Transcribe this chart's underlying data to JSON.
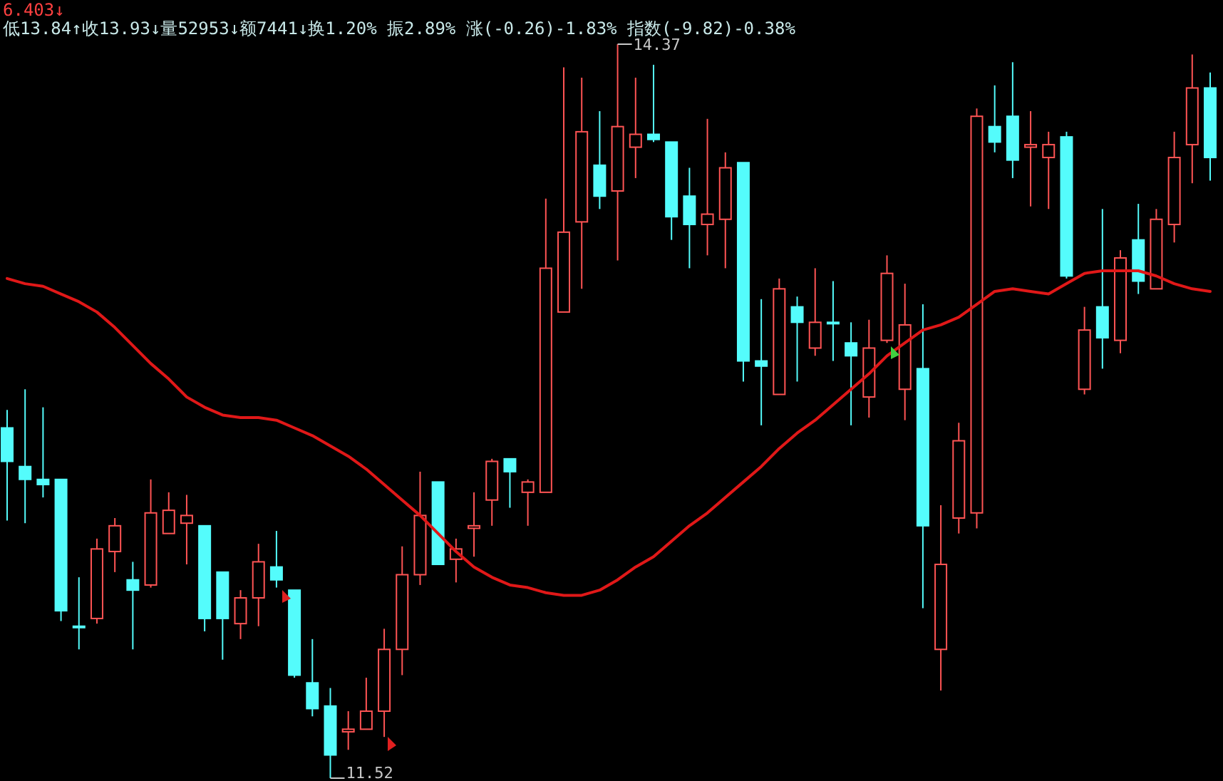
{
  "chart_data": {
    "type": "candlestick",
    "categories": [
      null,
      null,
      null,
      null,
      null,
      null,
      null,
      null,
      null,
      null,
      null,
      null,
      null,
      null,
      null,
      null,
      null,
      null,
      null,
      null,
      null,
      null,
      null,
      null,
      null,
      null,
      null,
      null,
      null,
      null,
      null,
      null,
      null,
      null,
      null,
      null,
      null,
      null,
      null,
      null,
      null,
      null,
      null,
      null,
      null,
      null,
      null,
      null,
      null,
      null,
      null,
      null,
      null,
      null,
      null,
      null,
      null,
      null,
      null,
      null,
      null,
      null,
      null,
      null,
      null,
      null,
      null,
      null
    ],
    "ohlc": [
      [
        12.88,
        12.95,
        12.52,
        12.75
      ],
      [
        12.73,
        13.03,
        12.51,
        12.68
      ],
      [
        12.68,
        12.96,
        12.61,
        12.66
      ],
      [
        12.68,
        12.68,
        12.13,
        12.17
      ],
      [
        12.11,
        12.3,
        12.02,
        12.11
      ],
      [
        12.14,
        12.45,
        12.12,
        12.41
      ],
      [
        12.4,
        12.53,
        12.32,
        12.5
      ],
      [
        12.29,
        12.36,
        12.02,
        12.25
      ],
      [
        12.27,
        12.68,
        12.26,
        12.55
      ],
      [
        12.47,
        12.63,
        12.47,
        12.56
      ],
      [
        12.51,
        12.62,
        12.35,
        12.54
      ],
      [
        12.5,
        12.5,
        12.09,
        12.14
      ],
      [
        12.32,
        12.32,
        11.98,
        12.14
      ],
      [
        12.12,
        12.25,
        12.06,
        12.22
      ],
      [
        12.22,
        12.43,
        12.11,
        12.36
      ],
      [
        12.34,
        12.48,
        12.26,
        12.29
      ],
      [
        12.25,
        12.25,
        11.91,
        11.92
      ],
      [
        11.89,
        12.06,
        11.76,
        11.79
      ],
      [
        11.8,
        11.87,
        11.52,
        11.61
      ],
      [
        11.7,
        11.78,
        11.63,
        11.71
      ],
      [
        11.71,
        11.91,
        11.71,
        11.78
      ],
      [
        11.78,
        12.1,
        11.68,
        12.02
      ],
      [
        12.02,
        12.42,
        11.92,
        12.31
      ],
      [
        12.31,
        12.71,
        12.27,
        12.54
      ],
      [
        12.67,
        12.67,
        12.35,
        12.35
      ],
      [
        12.37,
        12.45,
        12.28,
        12.41
      ],
      [
        12.49,
        12.63,
        12.38,
        12.5
      ],
      [
        12.6,
        12.76,
        12.5,
        12.75
      ],
      [
        12.76,
        12.76,
        12.57,
        12.71
      ],
      [
        12.63,
        12.68,
        12.5,
        12.67
      ],
      [
        12.63,
        13.77,
        12.63,
        13.5
      ],
      [
        13.33,
        14.28,
        13.33,
        13.64
      ],
      [
        13.68,
        14.24,
        13.42,
        14.03
      ],
      [
        13.9,
        14.11,
        13.73,
        13.78
      ],
      [
        13.8,
        14.37,
        13.53,
        14.05
      ],
      [
        13.97,
        14.24,
        13.85,
        14.02
      ],
      [
        14.02,
        14.29,
        13.99,
        14.0
      ],
      [
        13.99,
        13.99,
        13.61,
        13.7
      ],
      [
        13.78,
        13.89,
        13.5,
        13.67
      ],
      [
        13.67,
        14.08,
        13.55,
        13.71
      ],
      [
        13.69,
        13.95,
        13.5,
        13.89
      ],
      [
        13.91,
        13.91,
        13.06,
        13.14
      ],
      [
        13.14,
        13.38,
        12.89,
        13.12
      ],
      [
        13.01,
        13.46,
        13.01,
        13.42
      ],
      [
        13.35,
        13.39,
        13.06,
        13.29
      ],
      [
        13.19,
        13.5,
        13.16,
        13.29
      ],
      [
        13.29,
        13.45,
        13.14,
        13.29
      ],
      [
        13.21,
        13.29,
        12.89,
        13.16
      ],
      [
        13.0,
        13.3,
        12.92,
        13.19
      ],
      [
        13.22,
        13.55,
        13.21,
        13.48
      ],
      [
        13.03,
        13.44,
        12.91,
        13.28
      ],
      [
        13.11,
        13.36,
        12.18,
        12.5
      ],
      [
        12.02,
        12.58,
        11.86,
        12.35
      ],
      [
        12.53,
        12.9,
        12.47,
        12.83
      ],
      [
        12.55,
        14.12,
        12.49,
        14.09
      ],
      [
        14.05,
        14.21,
        13.95,
        13.99
      ],
      [
        14.09,
        14.3,
        13.85,
        13.92
      ],
      [
        13.97,
        14.11,
        13.74,
        13.98
      ],
      [
        13.93,
        14.03,
        13.73,
        13.98
      ],
      [
        14.01,
        14.03,
        13.46,
        13.47
      ],
      [
        13.03,
        13.35,
        13.01,
        13.26
      ],
      [
        13.35,
        13.73,
        13.11,
        13.23
      ],
      [
        13.22,
        13.57,
        13.17,
        13.54
      ],
      [
        13.61,
        13.75,
        13.4,
        13.45
      ],
      [
        13.42,
        13.73,
        13.42,
        13.69
      ],
      [
        13.67,
        14.03,
        13.6,
        13.93
      ],
      [
        13.98,
        14.33,
        13.83,
        14.2
      ],
      [
        14.2,
        14.26,
        13.84,
        13.93
      ]
    ],
    "colors": [
      "#54fcfc",
      "#54fcfc",
      "#54fcfc",
      "#54fcfc",
      "#54fcfc",
      "#ff5454",
      "#ff5454",
      "#54fcfc",
      "#ff5454",
      "#ff5454",
      "#ff5454",
      "#54fcfc",
      "#54fcfc",
      "#ff5454",
      "#ff5454",
      "#54fcfc",
      "#54fcfc",
      "#54fcfc",
      "#54fcfc",
      "#ff5454",
      "#ff5454",
      "#ff5454",
      "#ff5454",
      "#ff5454",
      "#54fcfc",
      "#ff5454",
      "#ff5454",
      "#ff5454",
      "#54fcfc",
      "#ff5454",
      "#ff5454",
      "#ff5454",
      "#ff5454",
      "#54fcfc",
      "#ff5454",
      "#ff5454",
      "#54fcfc",
      "#54fcfc",
      "#54fcfc",
      "#ff5454",
      "#ff5454",
      "#54fcfc",
      "#54fcfc",
      "#ff5454",
      "#54fcfc",
      "#ff5454",
      "#54fcfc",
      "#54fcfc",
      "#ff5454",
      "#ff5454",
      "#ff5454",
      "#54fcfc",
      "#ff5454",
      "#ff5454",
      "#ff5454",
      "#54fcfc",
      "#54fcfc",
      "#ff5454",
      "#ff5454",
      "#54fcfc",
      "#ff5454",
      "#54fcfc",
      "#ff5454",
      "#54fcfc",
      "#ff5454",
      "#ff5454",
      "#ff5454",
      "#54fcfc"
    ],
    "series": [
      {
        "type": "line",
        "color": "#e01818",
        "values": [
          13.46,
          13.44,
          13.43,
          13.4,
          13.37,
          13.33,
          13.27,
          13.2,
          13.13,
          13.07,
          13.0,
          12.96,
          12.93,
          12.92,
          12.92,
          12.91,
          12.88,
          12.85,
          12.81,
          12.77,
          12.72,
          12.66,
          12.6,
          12.54,
          12.47,
          12.4,
          12.34,
          12.3,
          12.27,
          12.26,
          12.24,
          12.23,
          12.23,
          12.25,
          12.29,
          12.34,
          12.38,
          12.44,
          12.5,
          12.55,
          12.61,
          12.67,
          12.73,
          12.8,
          12.86,
          12.91,
          12.97,
          13.03,
          13.09,
          13.16,
          13.21,
          13.26,
          13.28,
          13.31,
          13.36,
          13.41,
          13.42,
          13.41,
          13.4,
          13.44,
          13.48,
          13.49,
          13.49,
          13.49,
          13.47,
          13.44,
          13.42,
          13.41
        ]
      }
    ],
    "annotations": [
      "6.403↓",
      "低13.84↑收13.93↓量52953↓额7441↓换1.20% 振2.89% 涨(-0.26)-1.83% 指数(-9.82)-0.38%",
      "14.37",
      "11.52"
    ]
  }
}
